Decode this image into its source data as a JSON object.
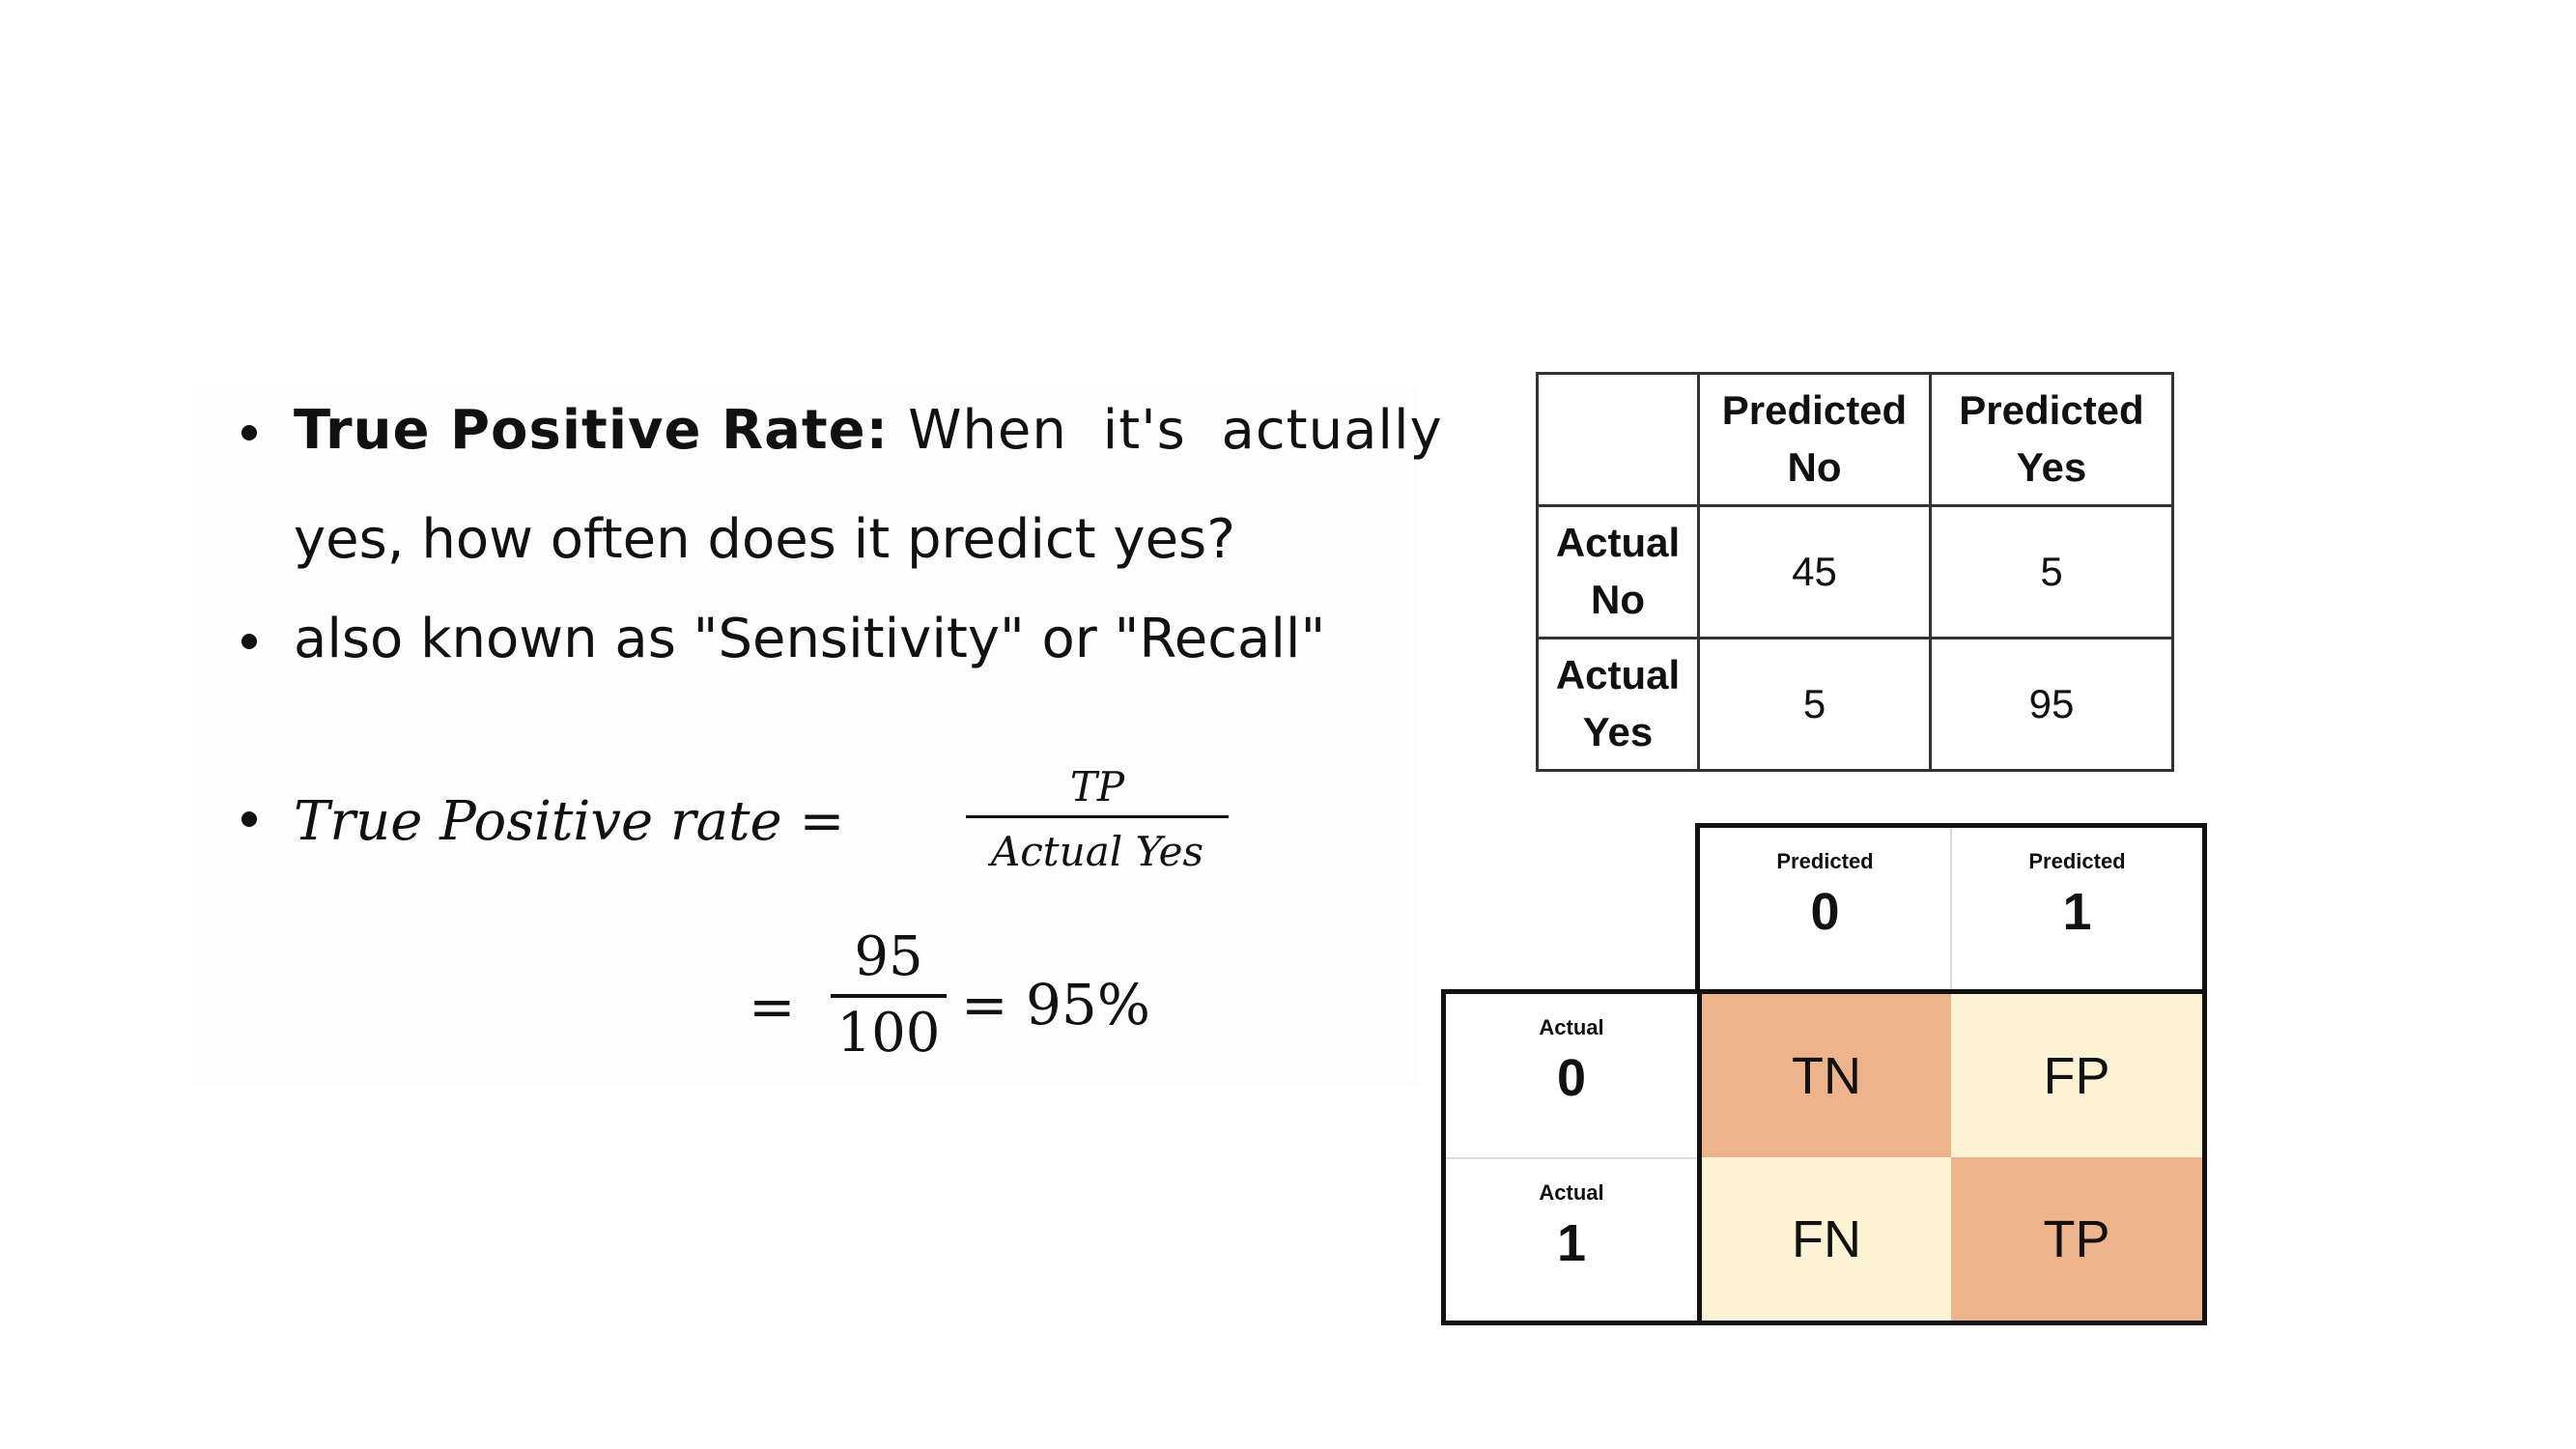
{
  "bullets": {
    "b1_title": "True Positive Rate:",
    "b1_rest": "When it's actually",
    "b1_line2": "yes, how often does it predict yes?",
    "b2": "also known as \"Sensitivity\" or \"Recall\"",
    "formula_lhs": "True Positive rate =",
    "formula_num": "TP",
    "formula_den": "Actual Yes",
    "eq2_sign": "=",
    "eq2_num": "95",
    "eq2_den": "100",
    "eq2_result": "= 95%"
  },
  "table1": {
    "col_headers": [
      "Predicted No",
      "Predicted Yes"
    ],
    "rows": [
      {
        "label": "Actual No",
        "values": [
          "45",
          "5"
        ]
      },
      {
        "label": "Actual Yes",
        "values": [
          "5",
          "95"
        ]
      }
    ]
  },
  "matrix": {
    "pred_label": "Predicted",
    "actual_label": "Actual",
    "pred_values": [
      "0",
      "1"
    ],
    "actual_values": [
      "0",
      "1"
    ],
    "cells": [
      [
        "TN",
        "FP"
      ],
      [
        "FN",
        "TP"
      ]
    ],
    "colors": {
      "dark": "#EDB38A",
      "light": "#FCF3D4"
    }
  }
}
